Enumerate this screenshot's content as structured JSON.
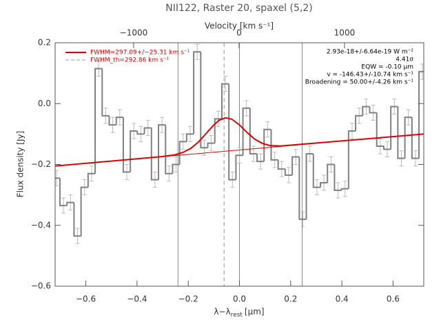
{
  "chart_data": {
    "type": "step",
    "title": "NII122, Raster 20, spaxel (5,2)",
    "y_label": "Flux density [Jy]",
    "x_label": {
      "text": "λ−λ",
      "subscript": "rest",
      "unit": "[μm]"
    },
    "x2_label": "Velocity [km s⁻¹]",
    "xlim": [
      -0.72,
      0.72
    ],
    "xticks": [
      {
        "value": -0.6,
        "label": "−0.6"
      },
      {
        "value": -0.4,
        "label": "−0.4"
      },
      {
        "value": -0.2,
        "label": "−0.2"
      },
      {
        "value": 0,
        "label": "0.0"
      },
      {
        "value": 0.2,
        "label": "0.2"
      },
      {
        "value": 0.4,
        "label": "0.4"
      },
      {
        "value": 0.6,
        "label": "0.6"
      }
    ],
    "x2lim": [
      -1745,
      1752
    ],
    "x2ticks": [
      {
        "value": -1000,
        "label": "−1000"
      },
      0,
      1000
    ],
    "ylim": [
      -0.6,
      0.2
    ],
    "yticks": [
      {
        "value": 0.2,
        "label": "0.2"
      },
      {
        "value": 0,
        "label": "0.0"
      },
      {
        "value": -0.2,
        "label": "−0.2"
      },
      {
        "value": -0.4,
        "label": "−0.4"
      },
      {
        "value": -0.6,
        "label": "−0.6"
      }
    ],
    "spectrum": {
      "color": "#808080",
      "bin_width": 0.0275,
      "x": [
        -0.715,
        -0.6875,
        -0.66,
        -0.6325,
        -0.605,
        -0.5775,
        -0.55,
        -0.5225,
        -0.495,
        -0.4675,
        -0.44,
        -0.4125,
        -0.385,
        -0.3575,
        -0.33,
        -0.3025,
        -0.275,
        -0.2475,
        -0.22,
        -0.1925,
        -0.165,
        -0.1375,
        -0.11,
        -0.0825,
        -0.055,
        -0.0275,
        0,
        0.0275,
        0.055,
        0.0825,
        0.11,
        0.1375,
        0.165,
        0.1925,
        0.22,
        0.2475,
        0.275,
        0.3025,
        0.33,
        0.3575,
        0.385,
        0.4125,
        0.44,
        0.4675,
        0.495,
        0.5225,
        0.55,
        0.5775,
        0.605,
        0.6325,
        0.66,
        0.6875,
        0.715
      ],
      "values": [
        -0.245,
        -0.335,
        -0.325,
        -0.435,
        -0.275,
        -0.23,
        0.115,
        -0.04,
        -0.07,
        -0.045,
        -0.225,
        -0.09,
        -0.1,
        -0.08,
        -0.25,
        -0.07,
        -0.23,
        -0.2,
        -0.125,
        -0.1,
        0.17,
        -0.145,
        -0.13,
        -0.05,
        0.065,
        -0.25,
        -0.17,
        -0.015,
        -0.165,
        -0.19,
        -0.085,
        -0.185,
        -0.215,
        -0.235,
        -0.175,
        -0.38,
        -0.165,
        -0.275,
        -0.26,
        -0.2,
        -0.285,
        -0.28,
        -0.09,
        -0.04,
        -0.01,
        -0.03,
        -0.14,
        -0.15,
        -0.01,
        -0.18,
        -0.045,
        -0.18,
        0.105
      ],
      "errors": [
        0.025,
        0.025,
        0.025,
        0.025,
        0.025,
        0.025,
        0.025,
        0.025,
        0.025,
        0.025,
        0.025,
        0.025,
        0.025,
        0.025,
        0.025,
        0.025,
        0.025,
        0.025,
        0.025,
        0.025,
        0.025,
        0.025,
        0.025,
        0.025,
        0.025,
        0.025,
        0.025,
        0.025,
        0.025,
        0.025,
        0.025,
        0.025,
        0.025,
        0.025,
        0.025,
        0.025,
        0.025,
        0.025,
        0.025,
        0.025,
        0.025,
        0.025,
        0.025,
        0.025,
        0.025,
        0.025,
        0.025,
        0.025,
        0.025,
        0.025,
        0.025,
        0.025,
        0.025
      ]
    },
    "fit": {
      "color": "#e00000",
      "x": [
        -0.72,
        -0.3,
        -0.25,
        -0.22,
        -0.19,
        -0.16,
        -0.13,
        -0.1,
        -0.08,
        -0.055,
        -0.03,
        0,
        0.03,
        0.06,
        0.09,
        0.12,
        0.16,
        0.72
      ],
      "y": [
        -0.205,
        -0.174,
        -0.168,
        -0.16,
        -0.147,
        -0.126,
        -0.098,
        -0.07,
        -0.055,
        -0.0465,
        -0.051,
        -0.07,
        -0.095,
        -0.117,
        -0.131,
        -0.138,
        -0.1395,
        -0.1
      ]
    },
    "continuum": {
      "x": [
        -0.72,
        0.72
      ],
      "y": [
        -0.205,
        -0.1
      ]
    },
    "vlines": [
      -0.24,
      0,
      0.245
    ],
    "dashed_vline": -0.06,
    "legend": [
      "FWHM=297.09+/−25.31 km s⁻¹",
      "FWHM_th=292.86 km s⁻¹"
    ],
    "annotations": [
      "2.93e-18+/-6.64e-19 W m⁻²",
      "4.41σ",
      "EQW = -0.10 μm",
      "v = -146.43+/-10.74 km s⁻¹",
      "Broadening = 50.00+/-4.26 km s⁻¹"
    ]
  }
}
